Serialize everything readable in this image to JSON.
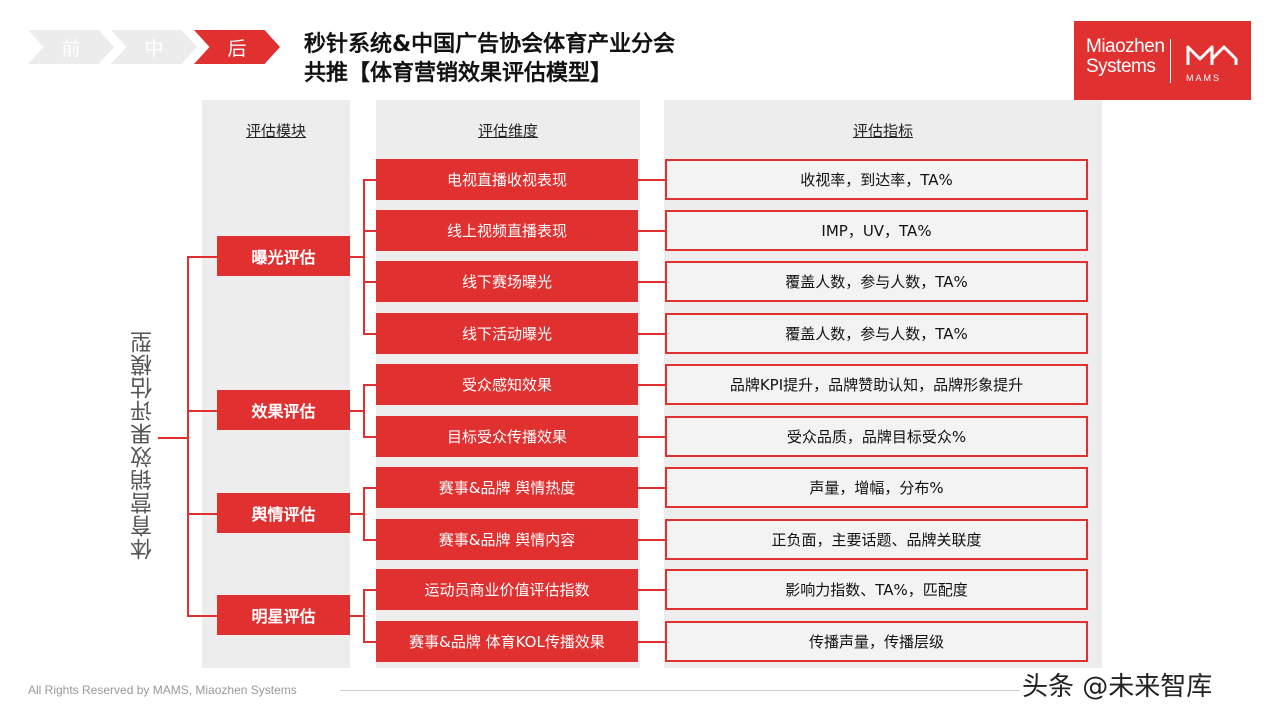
{
  "stages": [
    "前",
    "中",
    "后"
  ],
  "active_stage": 2,
  "title": {
    "line1": "秒针系统&中国广告协会体育产业分会",
    "line2": "共推【体育营销效果评估模型】"
  },
  "logo": {
    "brand_line1": "Miaozhen",
    "brand_line2": "Systems",
    "mams": "MAMS"
  },
  "model_title": "体育营销效果评估模型",
  "headers": {
    "module": "评估模块",
    "dimension": "评估维度",
    "indicator": "评估指标"
  },
  "modules": [
    {
      "label": "曝光评估"
    },
    {
      "label": "效果评估"
    },
    {
      "label": "舆情评估"
    },
    {
      "label": "明星评估"
    }
  ],
  "rows": [
    {
      "dimension": "电视直播收视表现",
      "indicator": "收视率，到达率，TA%"
    },
    {
      "dimension": "线上视频直播表现",
      "indicator": "IMP，UV，TA%"
    },
    {
      "dimension": "线下赛场曝光",
      "indicator": "覆盖人数，参与人数，TA%"
    },
    {
      "dimension": "线下活动曝光",
      "indicator": "覆盖人数，参与人数，TA%"
    },
    {
      "dimension": "受众感知效果",
      "indicator": "品牌KPI提升，品牌赞助认知，品牌形象提升"
    },
    {
      "dimension": "目标受众传播效果",
      "indicator": "受众品质，品牌目标受众%"
    },
    {
      "dimension": "赛事&品牌 舆情热度",
      "indicator": "声量，增幅，分布%"
    },
    {
      "dimension": "赛事&品牌 舆情内容",
      "indicator": "正负面，主要话题、品牌关联度"
    },
    {
      "dimension": "运动员商业价值评估指数",
      "indicator": "影响力指数、TA%，匹配度"
    },
    {
      "dimension": "赛事&品牌 体育KOL传播效果",
      "indicator": "传播声量，传播层级"
    }
  ],
  "footer": "All Rights Reserved by MAMS, Miaozhen Systems",
  "watermark": "头条 @未来智库",
  "colors": {
    "accent": "#e03030",
    "panel": "#ededed",
    "inactive_stage": "#ececec"
  }
}
